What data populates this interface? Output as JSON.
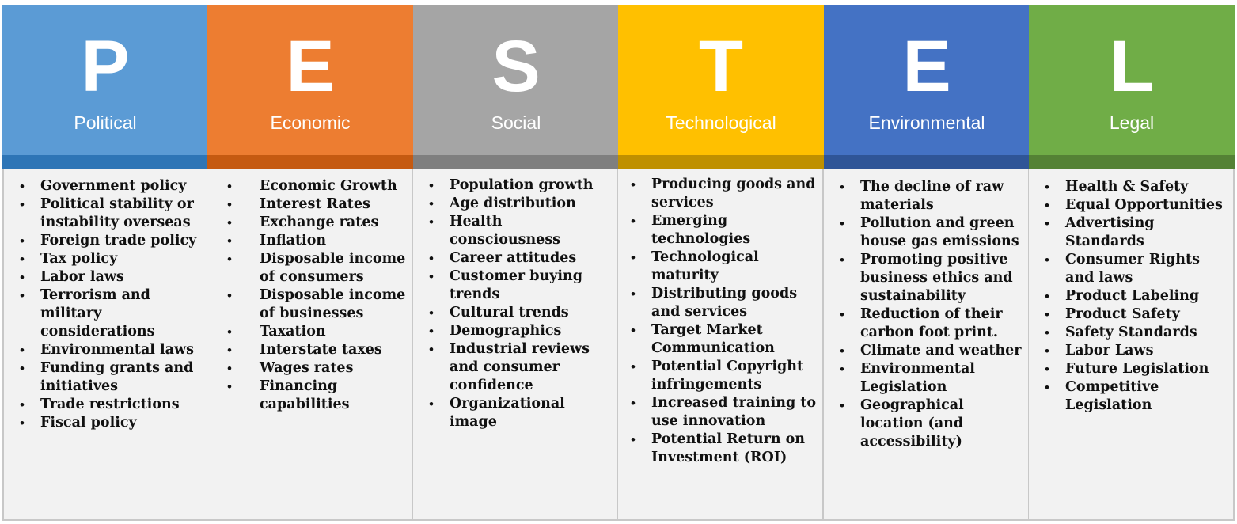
{
  "columns": [
    {
      "letter": "P",
      "label": "Political",
      "color": "#5b9bd5",
      "band_color": "#2e75b6",
      "items": [
        "Government policy",
        "Political stability or instability overseas",
        "Foreign trade policy",
        "Tax policy",
        "Labor laws",
        "Terrorism and military considerations",
        "Environmental laws",
        "Funding grants and initiatives",
        "Trade restrictions",
        "Fiscal policy"
      ]
    },
    {
      "letter": "E",
      "label": "Economic",
      "color": "#ed7d31",
      "band_color": "#c55a11",
      "items": [
        "Economic Growth",
        "Interest Rates",
        "Exchange rates",
        "Inflation",
        "Disposable income of consumers",
        "Disposable income of businesses",
        "Taxation",
        "Interstate taxes",
        "Wages rates",
        "Financing capabilities"
      ]
    },
    {
      "letter": "S",
      "label": "Social",
      "color": "#a5a5a5",
      "band_color": "#7f7f7f",
      "items": [
        "Population growth",
        "Age distribution",
        "Health consciousness",
        "Career attitudes",
        "Customer buying trends",
        "Cultural trends",
        "Demographics",
        "Industrial reviews and consumer confidence",
        "Organizational image"
      ]
    },
    {
      "letter": "T",
      "label": "Technological",
      "color": "#ffc000",
      "band_color": "#bf9000",
      "items": [
        "Producing goods and services",
        "Emerging technologies",
        "Technological maturity",
        "Distributing goods and services",
        "Target Market Communication",
        "Potential Copyright infringements",
        "Increased training to use innovation",
        "Potential Return on Investment (ROI)"
      ]
    },
    {
      "letter": "E",
      "label": "Environmental",
      "color": "#4472c4",
      "band_color": "#2f5597",
      "items": [
        "The decline of raw materials",
        "Pollution and green house gas emissions",
        "Promoting positive business ethics and sustainability",
        "Reduction of their carbon foot print.",
        "Climate and weather",
        "Environmental Legislation",
        "Geographical location (and accessibility)"
      ]
    },
    {
      "letter": "L",
      "label": "Legal",
      "color": "#70ad47",
      "band_color": "#548235",
      "items": [
        "Health & Safety",
        "Equal Opportunities",
        "Advertising Standards",
        "Consumer Rights and laws",
        "Product Labeling",
        "Product Safety",
        "Safety Standards",
        "Labor Laws",
        "Future Legislation",
        "Competitive Legislation"
      ]
    }
  ]
}
